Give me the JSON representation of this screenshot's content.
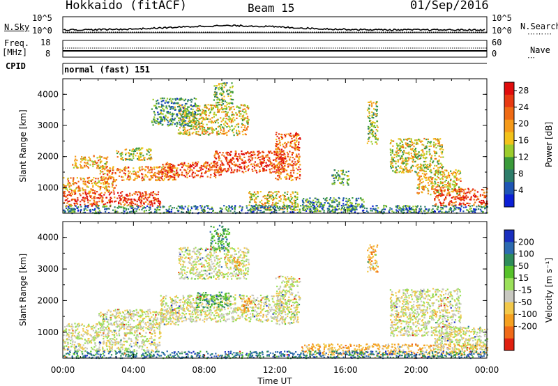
{
  "header": {
    "title": "Hokkaido (fitACF)",
    "beam": "Beam 15",
    "date": "01/Sep/2016"
  },
  "status": {
    "nsky_label": "N.Sky",
    "nsearch_label": "N.Search",
    "noise_ticks": [
      "10^5",
      "10^0"
    ],
    "noise_ticks_right": [
      "10^5",
      "10^0"
    ],
    "freq_label_1": "Freq.",
    "freq_label_2": "[MHz]",
    "freq_ticks": [
      "18",
      "8"
    ],
    "nave_label": "Nave",
    "nave_ticks": [
      "60",
      "0"
    ],
    "cpid_label": "CPID",
    "cpid_value": "normal (fast) 151"
  },
  "chart_data": [
    {
      "type": "heatmap",
      "name": "power",
      "ylabel": "Slant Range [km]",
      "xlabel": "Time UT",
      "x_ticks": [
        "00:00",
        "04:00",
        "08:00",
        "12:00",
        "16:00",
        "20:00",
        "00:00"
      ],
      "y_ticks": [
        "1000",
        "2000",
        "3000",
        "4000"
      ],
      "ylim": [
        180,
        4500
      ],
      "xlim_hours": [
        0,
        24
      ],
      "colorbar": {
        "label": "Power [dB]",
        "ticks": [
          "4",
          "8",
          "12",
          "16",
          "20",
          "24",
          "28"
        ],
        "range": [
          0,
          30
        ],
        "colors": [
          "#0b1fd6",
          "#1e55b4",
          "#2e7d6a",
          "#3a9a3a",
          "#9ccc2c",
          "#f2c21a",
          "#f59a1a",
          "#ef6a14",
          "#e83a12",
          "#e00c0c"
        ]
      },
      "regions": [
        {
          "t0": 0.0,
          "t1": 5.5,
          "r0": 420,
          "r1": 900,
          "level": 0.85
        },
        {
          "t0": 0.0,
          "t1": 3.0,
          "r0": 900,
          "r1": 1350,
          "level": 0.65
        },
        {
          "t0": 2.0,
          "t1": 6.5,
          "r0": 1250,
          "r1": 1700,
          "level": 0.7
        },
        {
          "t0": 0.5,
          "t1": 2.5,
          "r0": 1650,
          "r1": 2050,
          "level": 0.6
        },
        {
          "t0": 3.0,
          "t1": 5.0,
          "r0": 1900,
          "r1": 2300,
          "level": 0.5
        },
        {
          "t0": 5.5,
          "t1": 9.0,
          "r0": 1350,
          "r1": 1850,
          "level": 0.8
        },
        {
          "t0": 8.5,
          "t1": 12.5,
          "r0": 1500,
          "r1": 2200,
          "level": 0.85
        },
        {
          "t0": 12.0,
          "t1": 13.4,
          "r0": 1250,
          "r1": 2800,
          "level": 0.75
        },
        {
          "t0": 6.5,
          "t1": 10.5,
          "r0": 2700,
          "r1": 3700,
          "level": 0.55
        },
        {
          "t0": 8.5,
          "t1": 9.6,
          "r0": 3700,
          "r1": 4400,
          "level": 0.4
        },
        {
          "t0": 5.0,
          "t1": 7.5,
          "r0": 3000,
          "r1": 3900,
          "level": 0.3
        },
        {
          "t0": 10.5,
          "t1": 13.3,
          "r0": 300,
          "r1": 900,
          "level": 0.55
        },
        {
          "t0": 13.5,
          "t1": 17.0,
          "r0": 250,
          "r1": 700,
          "level": 0.3
        },
        {
          "t0": 15.2,
          "t1": 16.2,
          "r0": 1100,
          "r1": 1600,
          "level": 0.35
        },
        {
          "t0": 17.2,
          "t1": 17.8,
          "r0": 2400,
          "r1": 3800,
          "level": 0.45
        },
        {
          "t0": 18.5,
          "t1": 21.5,
          "r0": 1500,
          "r1": 2600,
          "level": 0.5
        },
        {
          "t0": 20.0,
          "t1": 22.5,
          "r0": 800,
          "r1": 1600,
          "level": 0.6
        },
        {
          "t0": 21.0,
          "t1": 24.0,
          "r0": 450,
          "r1": 1000,
          "level": 0.85
        },
        {
          "t0": 0.0,
          "t1": 24.0,
          "r0": 200,
          "r1": 450,
          "level": 0.25
        }
      ]
    },
    {
      "type": "heatmap",
      "name": "velocity",
      "ylabel": "Slant Range [km]",
      "xlabel": "Time UT",
      "x_ticks": [
        "00:00",
        "04:00",
        "08:00",
        "12:00",
        "16:00",
        "20:00",
        "00:00"
      ],
      "y_ticks": [
        "1000",
        "2000",
        "3000",
        "4000"
      ],
      "ylim": [
        180,
        4500
      ],
      "xlim_hours": [
        0,
        24
      ],
      "colorbar": {
        "label": "Velocity [m s⁻¹]",
        "ticks": [
          "200",
          "100",
          "50",
          "15",
          "-15",
          "-50",
          "-100",
          "-200"
        ],
        "colors": [
          "#1a2fbf",
          "#2d6bb0",
          "#2e8c5a",
          "#56c12a",
          "#9be05a",
          "#c8c8c0",
          "#f2c84a",
          "#f5a020",
          "#f06a18",
          "#e02010"
        ]
      },
      "regions": [
        {
          "t0": 0.0,
          "t1": 5.5,
          "r0": 420,
          "r1": 1300,
          "level": 0.45
        },
        {
          "t0": 2.0,
          "t1": 6.5,
          "r0": 1250,
          "r1": 1750,
          "level": 0.45
        },
        {
          "t0": 5.5,
          "t1": 12.5,
          "r0": 1350,
          "r1": 2200,
          "level": 0.45
        },
        {
          "t0": 12.0,
          "t1": 13.4,
          "r0": 1250,
          "r1": 2800,
          "level": 0.45
        },
        {
          "t0": 6.5,
          "t1": 10.5,
          "r0": 2700,
          "r1": 3700,
          "level": 0.45
        },
        {
          "t0": 7.5,
          "t1": 9.5,
          "r0": 1800,
          "r1": 2300,
          "level": 0.7
        },
        {
          "t0": 8.3,
          "t1": 9.4,
          "r0": 3600,
          "r1": 4400,
          "level": 0.7
        },
        {
          "t0": 10.0,
          "t1": 10.6,
          "r0": 1600,
          "r1": 2100,
          "level": 0.3
        },
        {
          "t0": 9.5,
          "t1": 10.0,
          "r0": 3000,
          "r1": 3400,
          "level": 0.3
        },
        {
          "t0": 13.5,
          "t1": 24.0,
          "r0": 300,
          "r1": 650,
          "level": 0.3
        },
        {
          "t0": 17.2,
          "t1": 17.8,
          "r0": 2900,
          "r1": 3800,
          "level": 0.3
        },
        {
          "t0": 18.5,
          "t1": 22.5,
          "r0": 900,
          "r1": 2400,
          "level": 0.45
        },
        {
          "t0": 21.0,
          "t1": 24.0,
          "r0": 450,
          "r1": 1200,
          "level": 0.45
        },
        {
          "t0": 0.0,
          "t1": 24.0,
          "r0": 200,
          "r1": 420,
          "level": 0.8
        }
      ]
    }
  ]
}
